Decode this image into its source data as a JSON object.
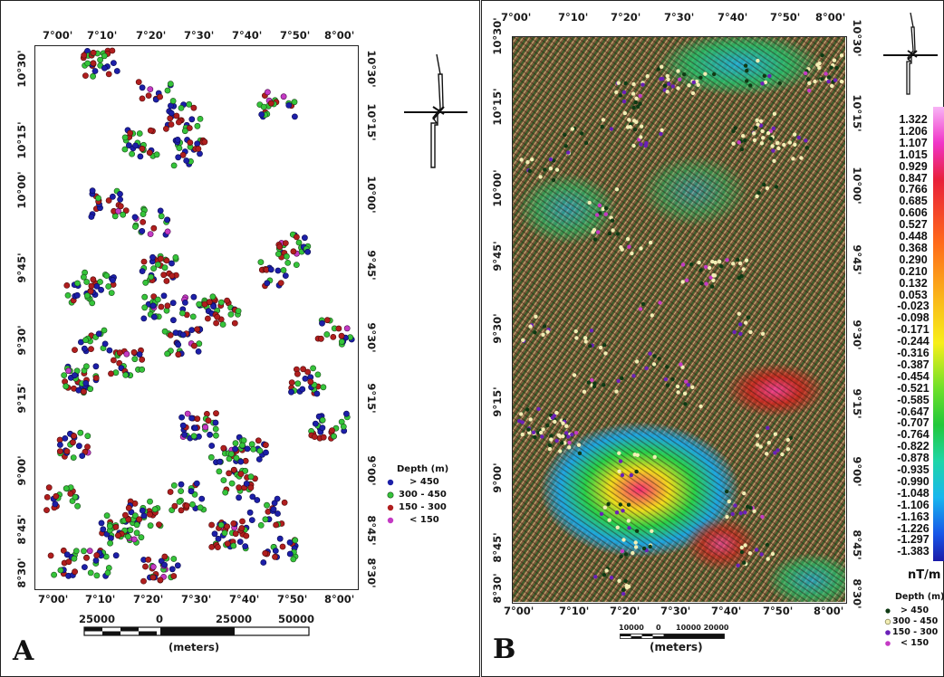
{
  "panel_a": {
    "letter": "A",
    "lon_labels": [
      "7°00'",
      "7°10'",
      "7°20'",
      "7°30'",
      "7°40'",
      "7°50'",
      "8°00'"
    ],
    "lat_labels": [
      "10°30'",
      "10°15'",
      "10°00'",
      "9°45'",
      "9°30'",
      "9°15'",
      "9°00'",
      "8°45'",
      "8°30'"
    ],
    "legend": {
      "title": "Depth (m)",
      "items": [
        {
          "label": ">  450",
          "color": "#1c1fa8"
        },
        {
          "label": "300  -  450",
          "color": "#35c43a"
        },
        {
          "label": "150  -  300",
          "color": "#b01e1e"
        },
        {
          "label": "<  150",
          "color": "#c43ac4"
        }
      ]
    },
    "scale_labels": [
      "25000",
      "0",
      "25000",
      "50000"
    ],
    "scale_unit": "(meters)"
  },
  "panel_b": {
    "letter": "B",
    "lon_labels": [
      "7°00'",
      "7°10'",
      "7°20'",
      "7°30'",
      "7°40'",
      "7°50'",
      "8°00'"
    ],
    "lat_labels": [
      "10°30'",
      "10°15'",
      "10°00'",
      "9°45'",
      "9°30'",
      "9°15'",
      "9°00'",
      "8°45'",
      "8°30'"
    ],
    "scale_labels": [
      "10000",
      "0",
      "10000 20000"
    ],
    "scale_unit": "(meters)",
    "colorbar_values": [
      "1.322",
      "1.206",
      "1.107",
      "1.015",
      "0.929",
      "0.847",
      "0.766",
      "0.685",
      "0.606",
      "0.527",
      "0.448",
      "0.368",
      "0.290",
      "0.210",
      "0.132",
      "0.053",
      "-0.023",
      "-0.098",
      "-0.171",
      "-0.244",
      "-0.316",
      "-0.387",
      "-0.454",
      "-0.521",
      "-0.585",
      "-0.647",
      "-0.707",
      "-0.764",
      "-0.822",
      "-0.878",
      "-0.935",
      "-0.990",
      "-1.048",
      "-1.106",
      "-1.163",
      "-1.226",
      "-1.297",
      "-1.383"
    ],
    "colorbar_unit": "nT/m",
    "legend": {
      "title": "Depth (m)",
      "items": [
        {
          "label": ">  450",
          "color": "#0f3a14"
        },
        {
          "label": "300  -  450",
          "color": "#f3eeb5"
        },
        {
          "label": "150  -  300",
          "color": "#6a20b8"
        },
        {
          "label": "<  150",
          "color": "#c43ac4"
        }
      ]
    }
  }
}
